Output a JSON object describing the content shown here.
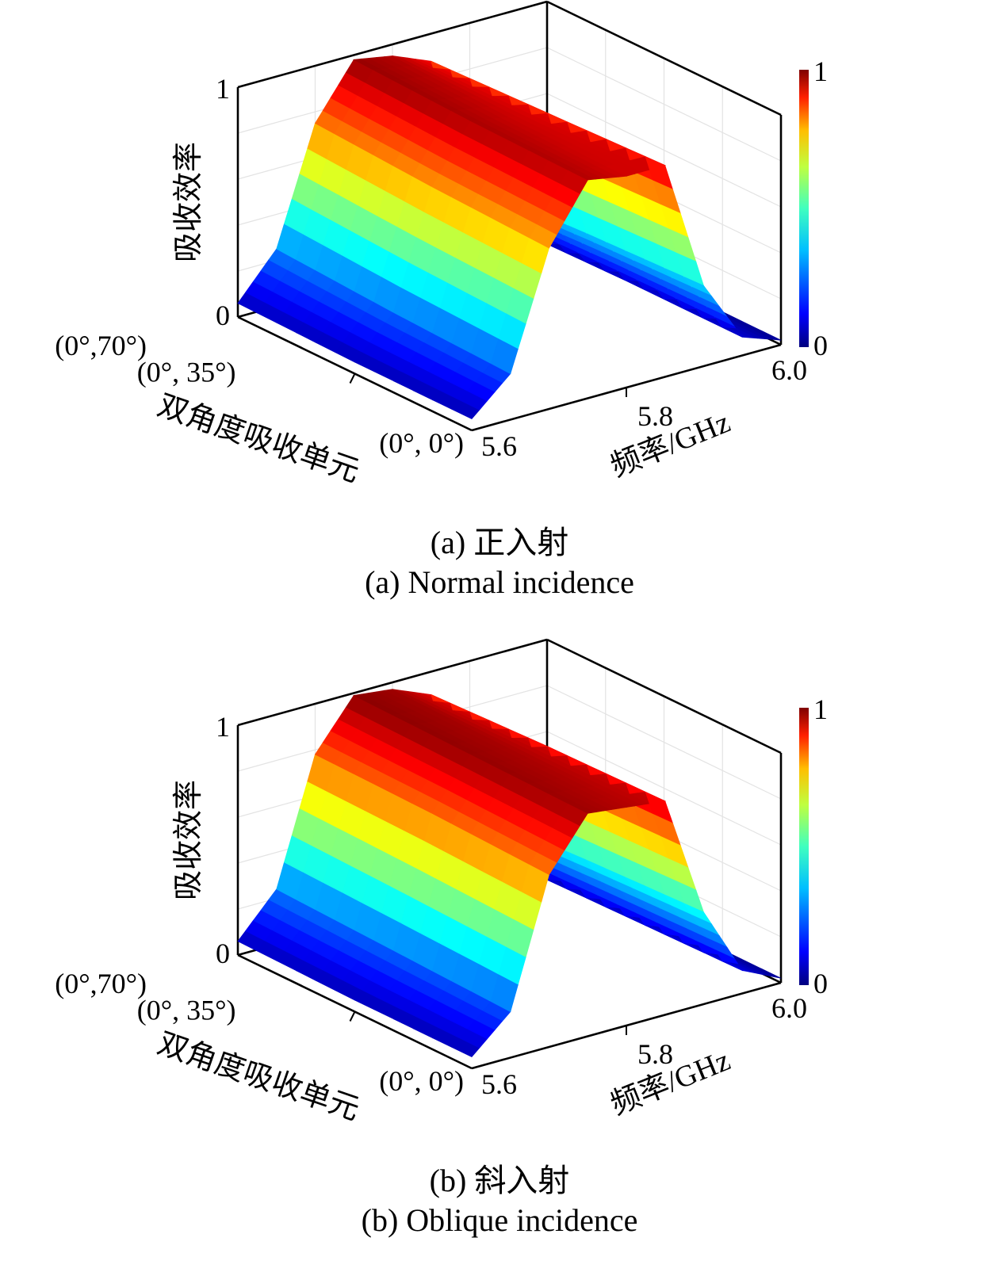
{
  "chart_data": [
    {
      "type": "surface",
      "panel": "a",
      "caption_zh": "(a) 正入射",
      "caption_en": "(a) Normal incidence",
      "xlabel": "频率/GHz",
      "ylabel": "双角度吸收单元",
      "zlabel": "吸收效率",
      "x_ticks": [
        "5.6",
        "5.8",
        "6.0"
      ],
      "y_ticks": [
        "(0°, 0°)",
        "(0°, 35°)",
        "(0°,70°)"
      ],
      "z_ticks": [
        "0",
        "1"
      ],
      "xlim": [
        5.6,
        6.0
      ],
      "zlim": [
        0,
        1
      ],
      "colorbar": {
        "min_label": "0",
        "max_label": "1",
        "colormap": "jet"
      },
      "x": [
        5.6,
        5.65,
        5.7,
        5.75,
        5.8,
        5.85,
        5.9,
        5.95,
        6.0
      ],
      "series": [
        {
          "name": "(0°, 0°)",
          "values": [
            0.05,
            0.2,
            0.7,
            0.95,
            0.92,
            0.92,
            0.35,
            0.08,
            0.02
          ]
        },
        {
          "name": "(0°, 35°)",
          "values": [
            0.05,
            0.22,
            0.72,
            0.96,
            0.93,
            0.9,
            0.33,
            0.08,
            0.02
          ]
        },
        {
          "name": "(0°,70°)",
          "values": [
            0.06,
            0.25,
            0.75,
            0.98,
            0.95,
            0.88,
            0.3,
            0.07,
            0.02
          ]
        }
      ]
    },
    {
      "type": "surface",
      "panel": "b",
      "caption_zh": "(b) 斜入射",
      "caption_en": "(b) Oblique incidence",
      "xlabel": "频率/GHz",
      "ylabel": "双角度吸收单元",
      "zlabel": "吸收效率",
      "x_ticks": [
        "5.6",
        "5.8",
        "6.0"
      ],
      "y_ticks": [
        "(0°, 0°)",
        "(0°, 35°)",
        "(0°,70°)"
      ],
      "z_ticks": [
        "0",
        "1"
      ],
      "xlim": [
        5.6,
        6.0
      ],
      "zlim": [
        0,
        1
      ],
      "colorbar": {
        "min_label": "0",
        "max_label": "1",
        "colormap": "jet"
      },
      "x": [
        5.6,
        5.65,
        5.7,
        5.75,
        5.8,
        5.85,
        5.9,
        5.95,
        6.0
      ],
      "series": [
        {
          "name": "(0°, 0°)",
          "values": [
            0.05,
            0.2,
            0.75,
            0.97,
            0.95,
            0.93,
            0.4,
            0.1,
            0.02
          ]
        },
        {
          "name": "(0°, 35°)",
          "values": [
            0.05,
            0.22,
            0.77,
            0.98,
            0.96,
            0.92,
            0.38,
            0.09,
            0.02
          ]
        },
        {
          "name": "(0°,70°)",
          "values": [
            0.06,
            0.24,
            0.78,
            0.99,
            0.97,
            0.9,
            0.35,
            0.08,
            0.02
          ]
        }
      ]
    }
  ]
}
